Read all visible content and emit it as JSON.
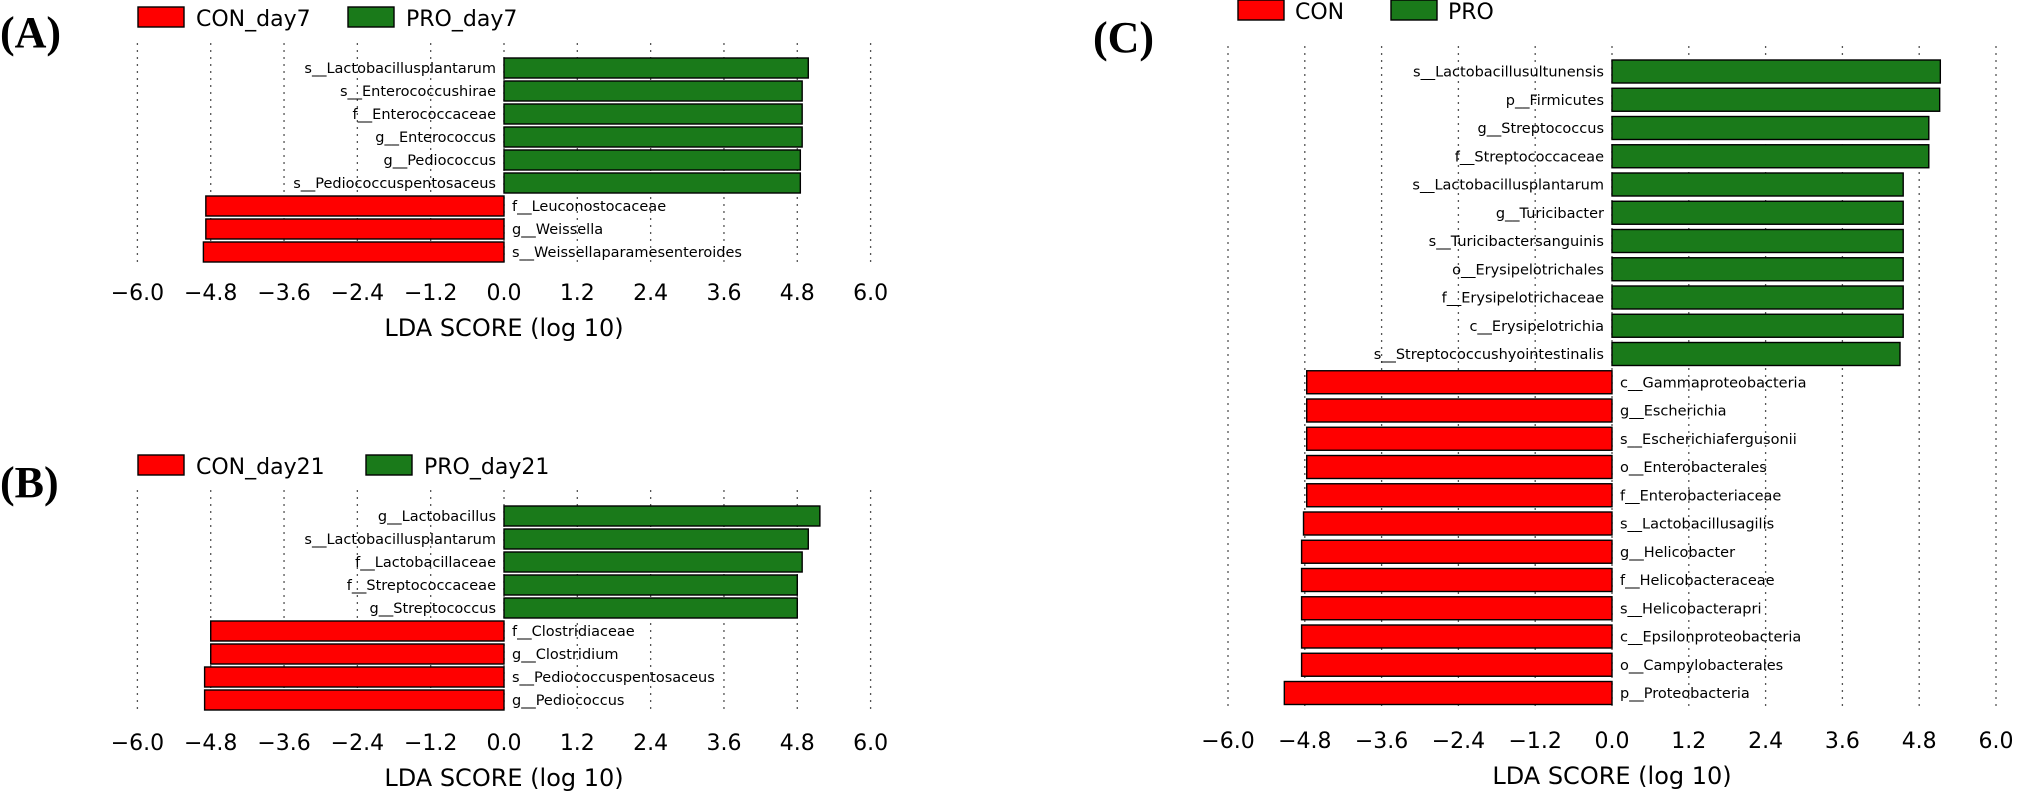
{
  "colors": {
    "con": "#ff0000",
    "pro": "#1a7a1a"
  },
  "chart_data": [
    {
      "type": "bar",
      "orientation": "horizontal",
      "panel": "(A)",
      "xlabel": "LDA SCORE (log 10)",
      "xlim": [
        -6.0,
        6.0
      ],
      "xticks": [
        "−6.0",
        "−4.8",
        "−3.6",
        "−2.4",
        "−1.2",
        "0.0",
        "1.2",
        "2.4",
        "3.6",
        "4.8",
        "6.0"
      ],
      "grid": "vertical dotted",
      "legend": {
        "placement": "top-left",
        "entries": [
          "CON_day7",
          "PRO_day7"
        ]
      },
      "bars": [
        {
          "label": "s__Lactobacillusplantarum",
          "value": 4.98,
          "group": "PRO_day7"
        },
        {
          "label": "s__Enterococcushirae",
          "value": 4.88,
          "group": "PRO_day7"
        },
        {
          "label": "f__Enterococcaceae",
          "value": 4.88,
          "group": "PRO_day7"
        },
        {
          "label": "g__Enterococcus",
          "value": 4.88,
          "group": "PRO_day7"
        },
        {
          "label": "g__Pediococcus",
          "value": 4.85,
          "group": "PRO_day7"
        },
        {
          "label": "s__Pediococcuspentosaceus",
          "value": 4.85,
          "group": "PRO_day7"
        },
        {
          "label": "f__Leuconostocaceae",
          "value": -4.88,
          "group": "CON_day7"
        },
        {
          "label": "g__Weissella",
          "value": -4.88,
          "group": "CON_day7"
        },
        {
          "label": "s__Weissellaparamesenteroides",
          "value": -4.92,
          "group": "CON_day7"
        }
      ]
    },
    {
      "type": "bar",
      "orientation": "horizontal",
      "panel": "(B)",
      "xlabel": "LDA SCORE (log 10)",
      "xlim": [
        -6.0,
        6.0
      ],
      "xticks": [
        "−6.0",
        "−4.8",
        "−3.6",
        "−2.4",
        "−1.2",
        "0.0",
        "1.2",
        "2.4",
        "3.6",
        "4.8",
        "6.0"
      ],
      "grid": "vertical dotted",
      "legend": {
        "placement": "top-left",
        "entries": [
          "CON_day21",
          "PRO_day21"
        ]
      },
      "bars": [
        {
          "label": "g__Lactobacillus",
          "value": 5.17,
          "group": "PRO_day21"
        },
        {
          "label": "s__Lactobacillusplantarum",
          "value": 4.98,
          "group": "PRO_day21"
        },
        {
          "label": "f__Lactobacillaceae",
          "value": 4.88,
          "group": "PRO_day21"
        },
        {
          "label": "f__Streptococcaceae",
          "value": 4.8,
          "group": "PRO_day21"
        },
        {
          "label": "g__Streptococcus",
          "value": 4.8,
          "group": "PRO_day21"
        },
        {
          "label": "f__Clostridiaceae",
          "value": -4.8,
          "group": "CON_day21"
        },
        {
          "label": "g__Clostridium",
          "value": -4.8,
          "group": "CON_day21"
        },
        {
          "label": "s__Pediococcuspentosaceus",
          "value": -4.9,
          "group": "CON_day21"
        },
        {
          "label": "g__Pediococcus",
          "value": -4.9,
          "group": "CON_day21"
        }
      ]
    },
    {
      "type": "bar",
      "orientation": "horizontal",
      "panel": "(C)",
      "xlabel": "LDA SCORE (log 10)",
      "xlim": [
        -6.0,
        6.0
      ],
      "xticks": [
        "−6.0",
        "−4.8",
        "−3.6",
        "−2.4",
        "−1.2",
        "0.0",
        "1.2",
        "2.4",
        "3.6",
        "4.8",
        "6.0"
      ],
      "grid": "vertical dotted",
      "legend": {
        "placement": "top-left",
        "entries": [
          "CON",
          "PRO"
        ]
      },
      "bars": [
        {
          "label": "s__Lactobacillusultunensis",
          "value": 5.13,
          "group": "PRO"
        },
        {
          "label": "p__Firmicutes",
          "value": 5.12,
          "group": "PRO"
        },
        {
          "label": "g__Streptococcus",
          "value": 4.95,
          "group": "PRO"
        },
        {
          "label": "f__Streptococcaceae",
          "value": 4.95,
          "group": "PRO"
        },
        {
          "label": "s__Lactobacillusplantarum",
          "value": 4.55,
          "group": "PRO"
        },
        {
          "label": "g__Turicibacter",
          "value": 4.55,
          "group": "PRO"
        },
        {
          "label": "s__Turicibactersanguinis",
          "value": 4.55,
          "group": "PRO"
        },
        {
          "label": "o__Erysipelotrichales",
          "value": 4.55,
          "group": "PRO"
        },
        {
          "label": "f__Erysipelotrichaceae",
          "value": 4.55,
          "group": "PRO"
        },
        {
          "label": "c__Erysipelotrichia",
          "value": 4.55,
          "group": "PRO"
        },
        {
          "label": "s__Streptococcushyointestinalis",
          "value": 4.5,
          "group": "PRO"
        },
        {
          "label": "c__Gammaproteobacteria",
          "value": -4.77,
          "group": "CON"
        },
        {
          "label": "g__Escherichia",
          "value": -4.77,
          "group": "CON"
        },
        {
          "label": "s__Escherichiafergusonii",
          "value": -4.77,
          "group": "CON"
        },
        {
          "label": "o__Enterobacterales",
          "value": -4.77,
          "group": "CON"
        },
        {
          "label": "f__Enterobacteriaceae",
          "value": -4.77,
          "group": "CON"
        },
        {
          "label": "s__Lactobacillusagilis",
          "value": -4.82,
          "group": "CON"
        },
        {
          "label": "g__Helicobacter",
          "value": -4.85,
          "group": "CON"
        },
        {
          "label": "f__Helicobacteraceae",
          "value": -4.85,
          "group": "CON"
        },
        {
          "label": "s__Helicobacterapri",
          "value": -4.85,
          "group": "CON"
        },
        {
          "label": "c__Epsilonproteobacteria",
          "value": -4.85,
          "group": "CON"
        },
        {
          "label": "o__Campylobacterales",
          "value": -4.85,
          "group": "CON"
        },
        {
          "label": "p__Proteobacteria",
          "value": -5.12,
          "group": "CON"
        }
      ]
    }
  ]
}
